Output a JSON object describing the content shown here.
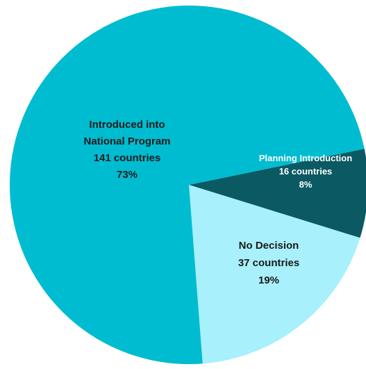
{
  "chart_data": {
    "type": "pie",
    "title": "",
    "slices": [
      {
        "label_lines": [
          "Planning Introduction",
          "16 countries",
          "8%"
        ],
        "value": 8,
        "color": "#0b5a63",
        "label_color": "#ffffff"
      },
      {
        "label_lines": [
          "No Decision",
          "37 countries",
          "19%"
        ],
        "value": 19,
        "color": "#a8f0fb",
        "label_color": "#1a1a1a"
      },
      {
        "label_lines": [
          "Introduced into",
          "National Program",
          "141 countries",
          "73%"
        ],
        "value": 73,
        "color": "#00bcd0",
        "label_color": "#1a1a1a"
      }
    ]
  }
}
